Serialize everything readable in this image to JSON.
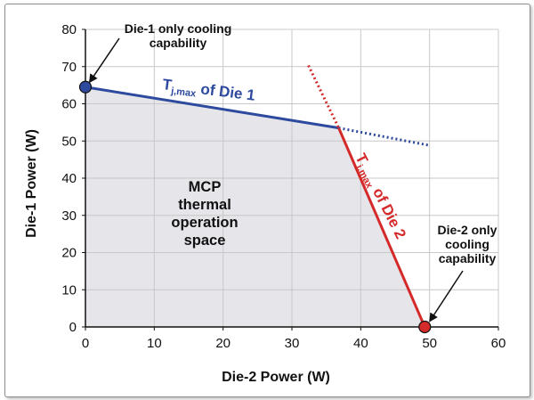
{
  "chart_data": {
    "type": "line",
    "xlabel": "Die-2 Power  (W)",
    "ylabel": "Die-1 Power  (W)",
    "xlim": [
      0,
      60
    ],
    "ylim": [
      0,
      80
    ],
    "x_ticks": [
      "0",
      "10",
      "20",
      "30",
      "40",
      "50",
      "60"
    ],
    "y_ticks": [
      "0",
      "10",
      "20",
      "30",
      "40",
      "50",
      "60",
      "70",
      "80"
    ],
    "grid": true,
    "series": [
      {
        "name_main": "T",
        "name_sub": "j,max",
        "name_rest": " of Die 1",
        "color": "#2e4a9e",
        "points": [
          [
            0,
            64.5
          ],
          [
            36.8,
            53.5
          ]
        ],
        "dotted_extension": [
          [
            36.8,
            53.5
          ],
          [
            50,
            48.8
          ]
        ]
      },
      {
        "name_main": "T",
        "name_sub": "j,max",
        "name_rest": " of Die 2",
        "color": "#d42a2a",
        "points": [
          [
            36.8,
            53.5
          ],
          [
            49.3,
            0
          ]
        ],
        "dotted_extension": [
          [
            32.4,
            70.3
          ],
          [
            36.8,
            53.5
          ]
        ]
      }
    ],
    "region": {
      "fill": "#e5e5ea",
      "vertices": [
        [
          0,
          0
        ],
        [
          0,
          64.5
        ],
        [
          36.8,
          53.5
        ],
        [
          49.3,
          0
        ]
      ],
      "label": [
        "MCP",
        "thermal",
        "operation",
        "space"
      ]
    },
    "markers": [
      {
        "x": 0,
        "y": 64.5,
        "color": "#2e4a9e"
      },
      {
        "x": 49.3,
        "y": 0,
        "color": "#d42a2a"
      }
    ],
    "annotations": [
      {
        "lines": [
          "Die-1 only cooling",
          "capability"
        ],
        "target": [
          0,
          64.5
        ]
      },
      {
        "lines": [
          "Die-2 only",
          "cooling",
          "capability"
        ],
        "target": [
          49.3,
          0
        ]
      }
    ]
  }
}
